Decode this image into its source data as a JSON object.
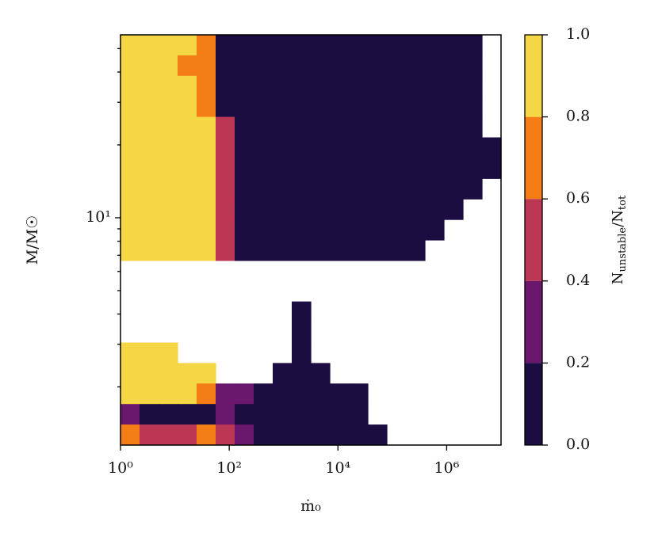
{
  "chart_data": {
    "type": "contourf",
    "xlabel": "ṁ₀",
    "ylabel": "M/M☉",
    "colorbar_label": [
      "N",
      "unstable",
      "/N",
      "tot"
    ],
    "xscale": "log",
    "yscale": "log",
    "xlim": [
      1,
      10000000
    ],
    "ylim": [
      1.15,
      57
    ],
    "xticks": [
      {
        "value": 1,
        "label": "10⁰"
      },
      {
        "value": 100,
        "label": "10²"
      },
      {
        "value": 10000,
        "label": "10⁴"
      },
      {
        "value": 1000000,
        "label": "10⁶"
      }
    ],
    "yticks": [
      {
        "value": 10,
        "label": "10¹"
      }
    ],
    "yticks_minor": [
      2,
      3,
      4,
      5,
      6,
      7,
      8,
      9,
      20,
      30,
      40,
      50
    ],
    "levels": [
      0,
      0.2,
      0.4,
      0.6,
      0.8,
      1.0
    ],
    "colors": [
      "#1b0c41",
      "#6a176e",
      "#bc3754",
      "#f57d15",
      "#f5d746"
    ],
    "colorbar_ticks": [
      {
        "value": 0,
        "label": "0.0"
      },
      {
        "value": 0.2,
        "label": "0.2"
      },
      {
        "value": 0.4,
        "label": "0.4"
      },
      {
        "value": 0.6,
        "label": "0.6"
      },
      {
        "value": 0.8,
        "label": "0.8"
      },
      {
        "value": 1.0,
        "label": "1.0"
      }
    ],
    "z": [
      [
        0.9,
        0.9,
        0.9,
        0.9,
        0.7,
        0.1,
        0.1,
        0.1,
        0.1,
        0.1,
        0.1,
        0.1,
        0.1,
        0.1,
        0.1,
        0.1,
        0.1,
        0.1,
        0.1,
        null
      ],
      [
        0.9,
        0.9,
        0.9,
        0.7,
        0.7,
        0.1,
        0.1,
        0.1,
        0.1,
        0.1,
        0.1,
        0.1,
        0.1,
        0.1,
        0.1,
        0.1,
        0.1,
        0.1,
        0.1,
        null
      ],
      [
        0.9,
        0.9,
        0.9,
        0.9,
        0.7,
        0.1,
        0.1,
        0.1,
        0.1,
        0.1,
        0.1,
        0.1,
        0.1,
        0.1,
        0.1,
        0.1,
        0.1,
        0.1,
        0.1,
        null
      ],
      [
        0.9,
        0.9,
        0.9,
        0.9,
        0.7,
        0.1,
        0.1,
        0.1,
        0.1,
        0.1,
        0.1,
        0.1,
        0.1,
        0.1,
        0.1,
        0.1,
        0.1,
        0.1,
        0.1,
        null
      ],
      [
        0.9,
        0.9,
        0.9,
        0.9,
        0.9,
        0.5,
        0.1,
        0.1,
        0.1,
        0.1,
        0.1,
        0.1,
        0.1,
        0.1,
        0.1,
        0.1,
        0.1,
        0.1,
        0.1,
        null
      ],
      [
        0.9,
        0.9,
        0.9,
        0.9,
        0.9,
        0.5,
        0.1,
        0.1,
        0.1,
        0.1,
        0.1,
        0.1,
        0.1,
        0.1,
        0.1,
        0.1,
        0.1,
        0.1,
        0.1,
        0.1
      ],
      [
        0.9,
        0.9,
        0.9,
        0.9,
        0.9,
        0.5,
        0.1,
        0.1,
        0.1,
        0.1,
        0.1,
        0.1,
        0.1,
        0.1,
        0.1,
        0.1,
        0.1,
        0.1,
        0.1,
        0.1
      ],
      [
        0.9,
        0.9,
        0.9,
        0.9,
        0.9,
        0.5,
        0.1,
        0.1,
        0.1,
        0.1,
        0.1,
        0.1,
        0.1,
        0.1,
        0.1,
        0.1,
        0.1,
        0.1,
        0.1,
        null
      ],
      [
        0.9,
        0.9,
        0.9,
        0.9,
        0.9,
        0.5,
        0.1,
        0.1,
        0.1,
        0.1,
        0.1,
        0.1,
        0.1,
        0.1,
        0.1,
        0.1,
        0.1,
        0.1,
        null,
        null
      ],
      [
        0.9,
        0.9,
        0.9,
        0.9,
        0.9,
        0.5,
        0.1,
        0.1,
        0.1,
        0.1,
        0.1,
        0.1,
        0.1,
        0.1,
        0.1,
        0.1,
        0.1,
        null,
        null,
        null
      ],
      [
        0.9,
        0.9,
        0.9,
        0.9,
        0.9,
        0.5,
        0.1,
        0.1,
        0.1,
        0.1,
        0.1,
        0.1,
        0.1,
        0.1,
        0.1,
        0.1,
        null,
        null,
        null,
        null
      ],
      [
        null,
        null,
        null,
        null,
        null,
        null,
        null,
        null,
        null,
        null,
        null,
        null,
        null,
        null,
        null,
        null,
        null,
        null,
        null,
        null
      ],
      [
        null,
        null,
        null,
        null,
        null,
        null,
        null,
        null,
        null,
        null,
        null,
        null,
        null,
        null,
        null,
        null,
        null,
        null,
        null,
        null
      ],
      [
        null,
        null,
        null,
        null,
        null,
        null,
        null,
        null,
        null,
        0.1,
        null,
        null,
        null,
        null,
        null,
        null,
        null,
        null,
        null,
        null
      ],
      [
        null,
        null,
        null,
        null,
        null,
        null,
        null,
        null,
        null,
        0.1,
        null,
        null,
        null,
        null,
        null,
        null,
        null,
        null,
        null,
        null
      ],
      [
        0.9,
        0.9,
        0.9,
        null,
        null,
        null,
        null,
        null,
        null,
        0.1,
        null,
        null,
        null,
        null,
        null,
        null,
        null,
        null,
        null,
        null
      ],
      [
        0.9,
        0.9,
        0.9,
        0.9,
        0.9,
        null,
        null,
        null,
        0.1,
        0.1,
        0.1,
        null,
        null,
        null,
        null,
        null,
        null,
        null,
        null,
        null
      ],
      [
        0.9,
        0.9,
        0.9,
        0.9,
        0.7,
        0.3,
        0.3,
        0.1,
        0.1,
        0.1,
        0.1,
        0.1,
        0.1,
        null,
        null,
        null,
        null,
        null,
        null,
        null
      ],
      [
        0.3,
        0.1,
        0.1,
        0.1,
        0.1,
        0.3,
        0.1,
        0.1,
        0.1,
        0.1,
        0.1,
        0.1,
        0.1,
        null,
        null,
        null,
        null,
        null,
        null,
        null
      ],
      [
        0.7,
        0.5,
        0.5,
        0.5,
        0.7,
        0.5,
        0.3,
        0.1,
        0.1,
        0.1,
        0.1,
        0.1,
        0.1,
        0.1,
        null,
        null,
        null,
        null,
        null,
        null
      ]
    ]
  }
}
